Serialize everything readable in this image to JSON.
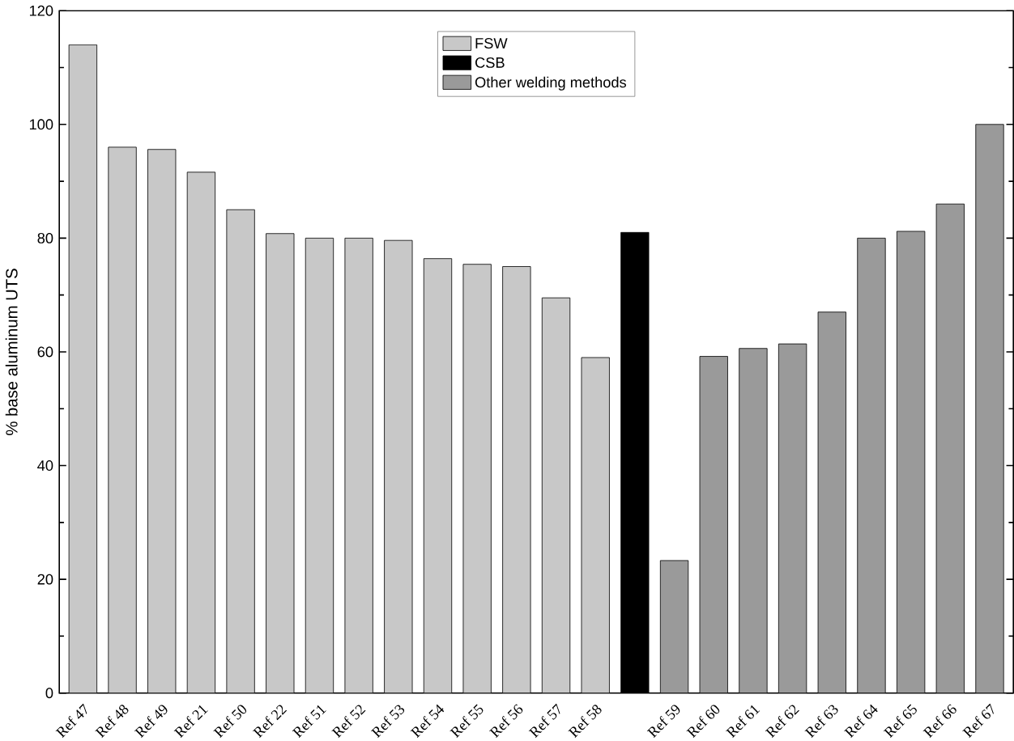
{
  "chart_data": {
    "type": "bar",
    "ylabel": "% base aluminum UTS",
    "categories": [
      "Ref 47",
      "Ref 48",
      "Ref 49",
      "Ref 21",
      "Ref 50",
      "Ref 22",
      "Ref 51",
      "Ref 52",
      "Ref 53",
      "Ref 54",
      "Ref 55",
      "Ref 56",
      "Ref 57",
      "Ref 58",
      null,
      "Ref 59",
      "Ref 60",
      "Ref 61",
      "Ref 62",
      "Ref 63",
      "Ref 64",
      "Ref 65",
      "Ref 66",
      "Ref 67"
    ],
    "series": [
      {
        "name": "FSW",
        "color": "#c8c8c8",
        "values": [
          114,
          96,
          95.6,
          91.6,
          85,
          80.8,
          80,
          80,
          79.6,
          76.4,
          75.4,
          75,
          69.5,
          59,
          null,
          null,
          null,
          null,
          null,
          null,
          null,
          null,
          null,
          null
        ]
      },
      {
        "name": "CSB",
        "color": "#000000",
        "values": [
          null,
          null,
          null,
          null,
          null,
          null,
          null,
          null,
          null,
          null,
          null,
          null,
          null,
          null,
          81,
          null,
          null,
          null,
          null,
          null,
          null,
          null,
          null,
          null
        ]
      },
      {
        "name": "Other welding methods",
        "color": "#9a9a9a",
        "values": [
          null,
          null,
          null,
          null,
          null,
          null,
          null,
          null,
          null,
          null,
          null,
          null,
          null,
          null,
          null,
          23.3,
          59.2,
          60.6,
          61.4,
          67,
          80,
          81.2,
          86,
          100
        ]
      }
    ],
    "ylim": [
      0,
      120
    ],
    "yticks": [
      0,
      20,
      40,
      60,
      80,
      100,
      120
    ],
    "legend": "top"
  }
}
